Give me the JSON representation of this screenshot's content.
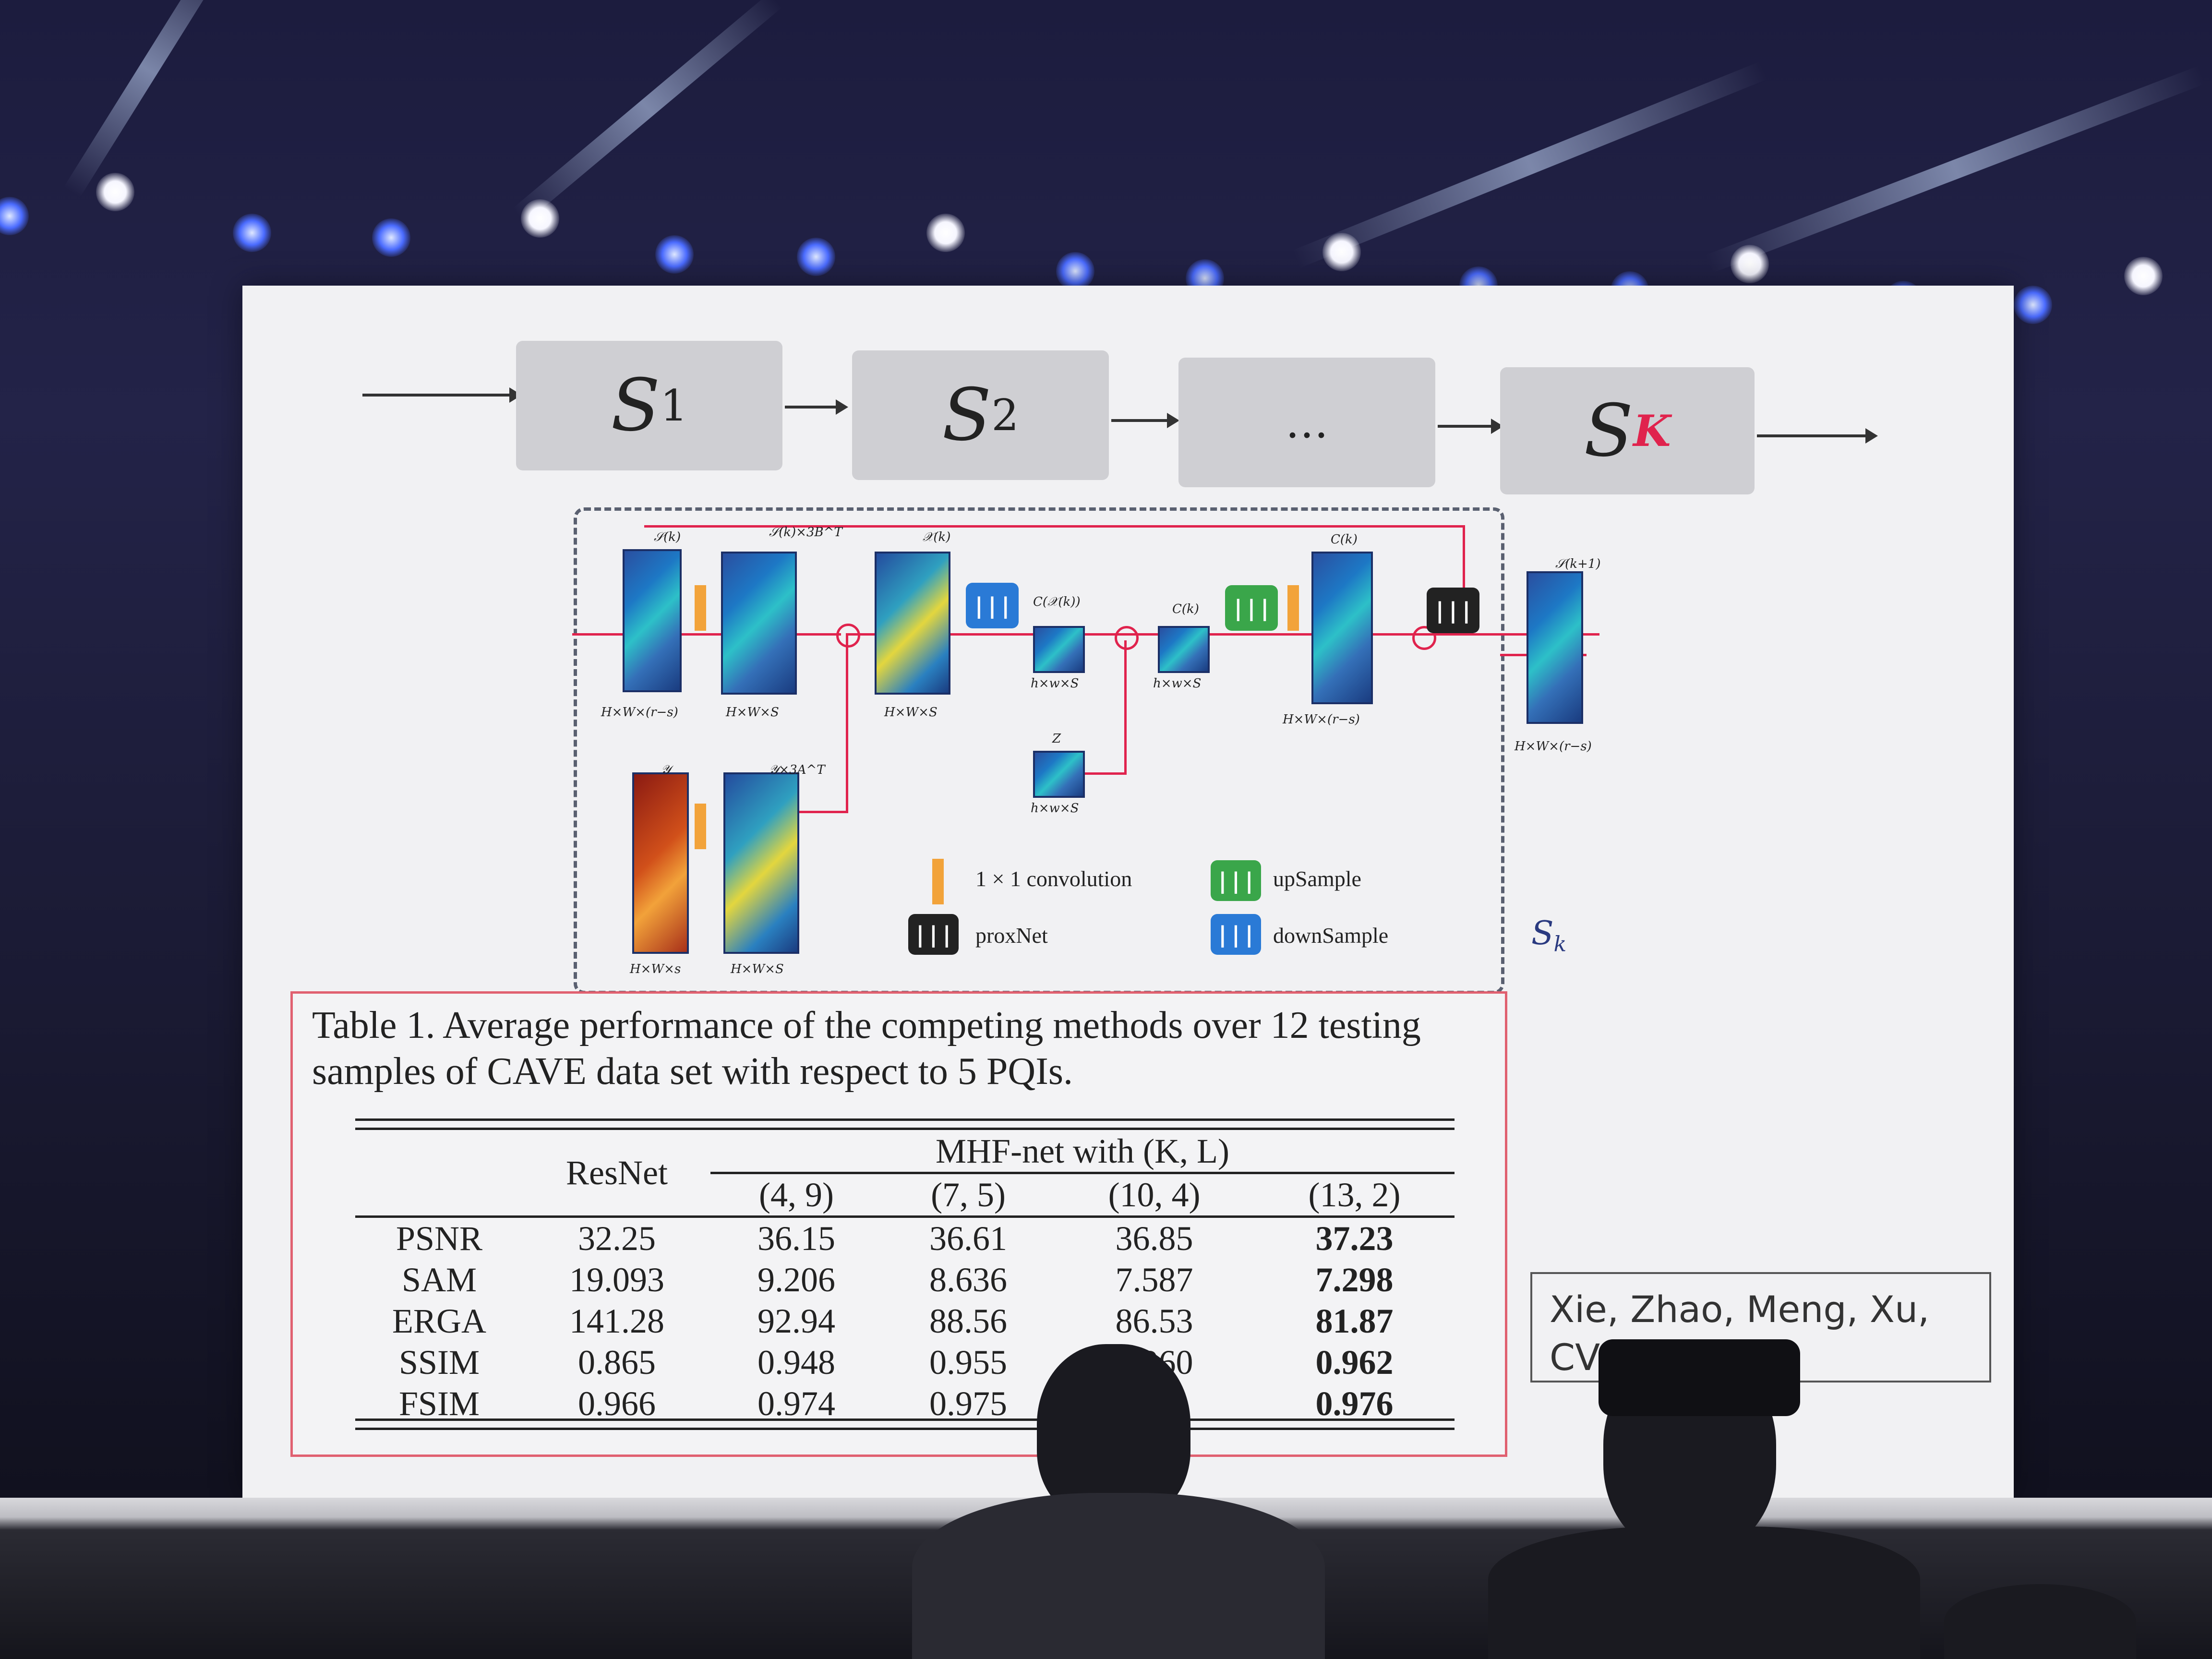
{
  "scene": {
    "slide": {
      "stages": [
        "S",
        "S",
        "…",
        "S"
      ],
      "stage_subscripts": [
        "1",
        "2",
        "",
        "K"
      ],
      "accent_color": "#e0234d",
      "diagram": {
        "legend": {
          "conv": "1 × 1 convolution",
          "upsample": "upSample",
          "proxnet": "proxNet",
          "downsample": "downSample"
        },
        "node_labels": {
          "s_k": "𝒮(k)",
          "s_k_bt": "𝒮(k)×3B^T",
          "x_k": "𝒳(k)",
          "c_x": "C(𝒳(k))",
          "c_k": "C(k)",
          "z": "Z",
          "y": "𝒴",
          "y_at": "𝒴×3A^T",
          "c_k2": "C(k)",
          "s_k1": "𝒮(k+1)"
        },
        "dims": {
          "d1": "H×W×(r−s)",
          "d2": "H×W×S",
          "d3": "H×W×S",
          "d4": "h×w×S",
          "d5": "h×w×S",
          "d6": "h×w×S",
          "d7": "H×W×(r−s)",
          "d8": "H×W×(r−s)",
          "d9": "H×W×s",
          "d10": "H×W×S"
        },
        "stage_label": "S",
        "stage_label_sub": "k"
      },
      "table": {
        "caption": "Table 1. Average performance of the competing methods over 12 testing samples of CAVE data set with respect to 5 PQIs.",
        "col_resnet": "ResNet",
        "col_group": "MHF-net with (K, L)",
        "sub_cols": [
          "(4, 9)",
          "(7, 5)",
          "(10, 4)",
          "(13, 2)"
        ],
        "rows": [
          {
            "metric": "PSNR",
            "values": [
              "32.25",
              "36.15",
              "36.61",
              "36.85",
              "37.23"
            ]
          },
          {
            "metric": "SAM",
            "values": [
              "19.093",
              "9.206",
              "8.636",
              "7.587",
              "7.298"
            ]
          },
          {
            "metric": "ERGA",
            "values": [
              "141.28",
              "92.94",
              "88.56",
              "86.53",
              "81.87"
            ]
          },
          {
            "metric": "SSIM",
            "values": [
              "0.865",
              "0.948",
              "0.955",
              "0.960",
              "0.962"
            ]
          },
          {
            "metric": "FSIM",
            "values": [
              "0.966",
              "0.974",
              "0.975",
              "",
              "0.976"
            ]
          }
        ]
      },
      "citation": "Xie, Zhao, Meng, Xu, CV"
    }
  }
}
